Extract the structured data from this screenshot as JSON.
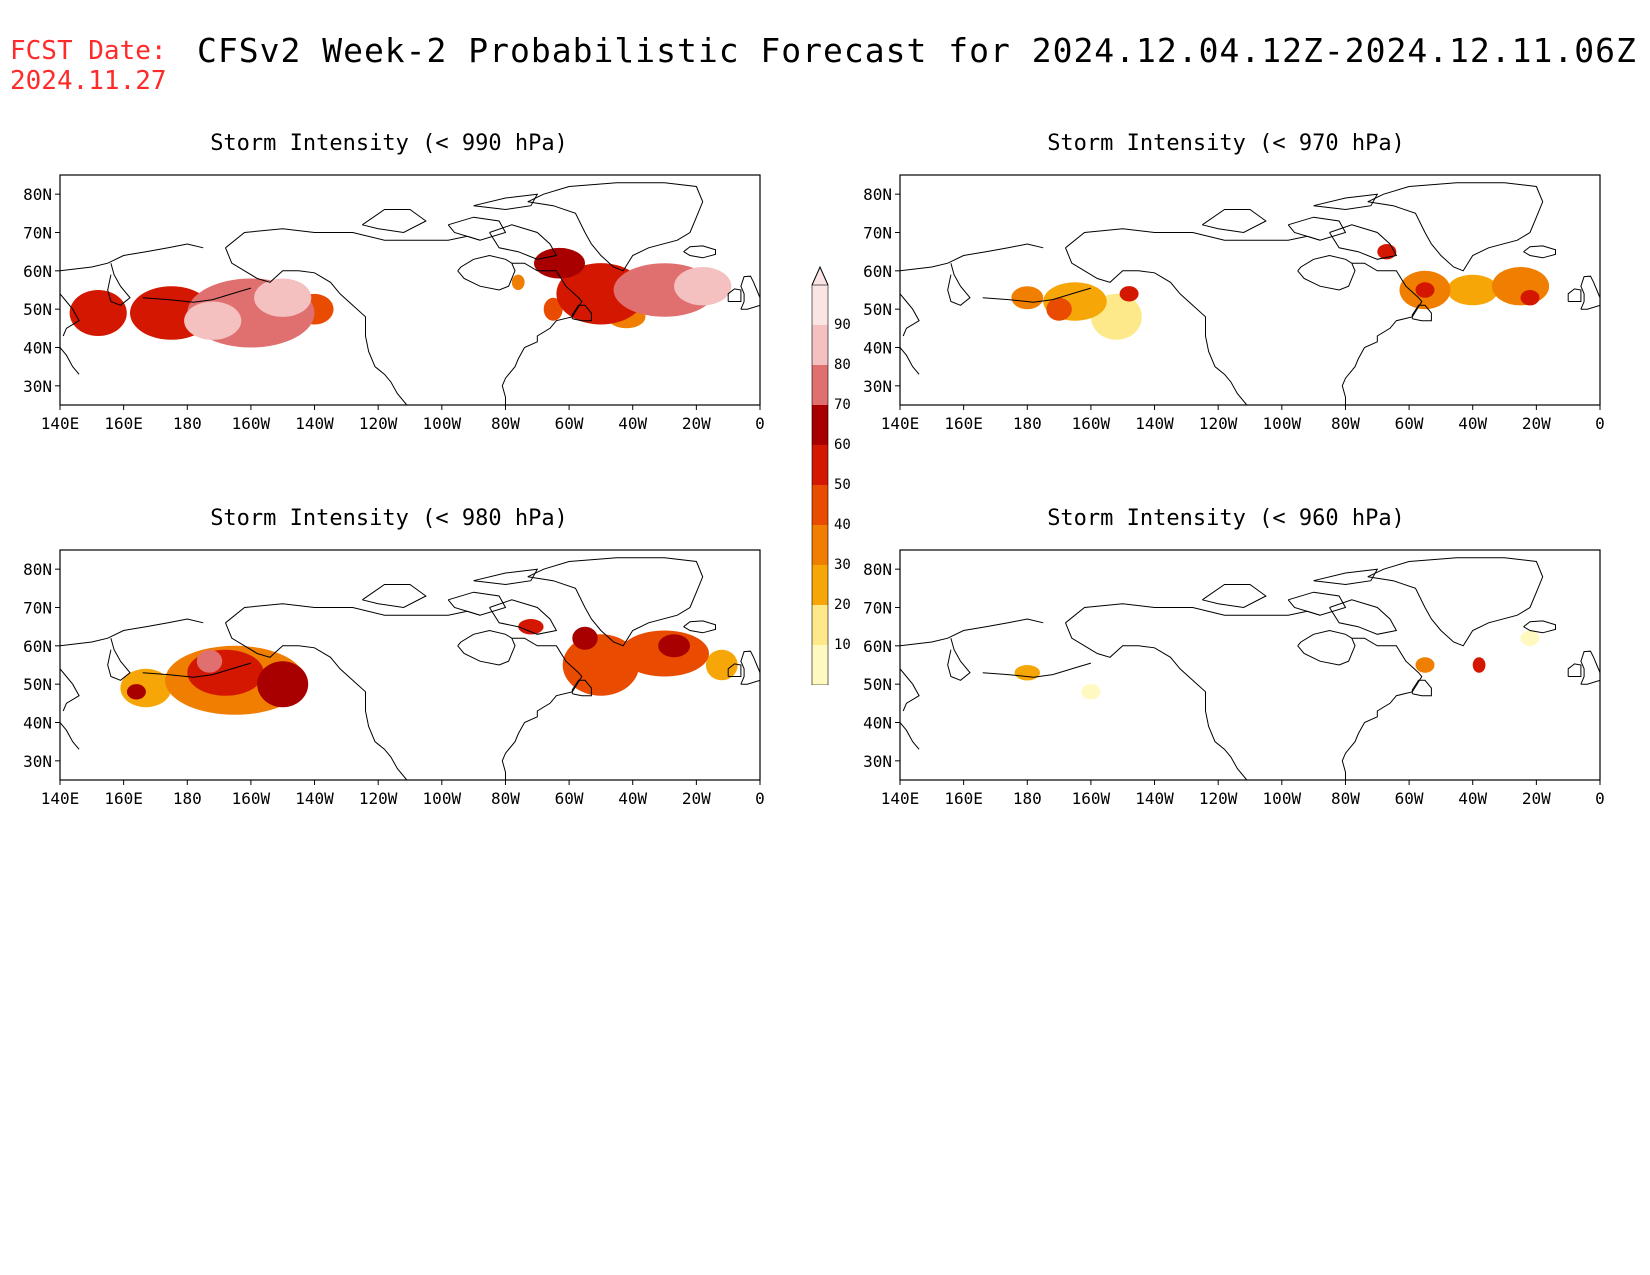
{
  "header": {
    "fcst_label": "FCST Date:",
    "fcst_date": "2024.11.27",
    "title": "CFSv2 Week-2 Probabilistic Forecast for 2024.12.04.12Z-2024.12.11.06Z"
  },
  "axes": {
    "lat_labels": [
      "80N",
      "70N",
      "60N",
      "50N",
      "40N",
      "30N"
    ],
    "lon_labels": [
      "140E",
      "160E",
      "180",
      "160W",
      "140W",
      "120W",
      "100W",
      "80W",
      "60W",
      "40W",
      "20W",
      "0"
    ]
  },
  "panels": [
    {
      "title": "Storm Intensity (< 990 hPa)",
      "blobs": [
        {
          "lon": -185,
          "lat": 49,
          "rx": 13,
          "ry": 7,
          "level": 60
        },
        {
          "lon": -160,
          "lat": 49,
          "rx": 20,
          "ry": 9,
          "level": 80
        },
        {
          "lon": -172,
          "lat": 47,
          "rx": 9,
          "ry": 5,
          "level": 90
        },
        {
          "lon": -150,
          "lat": 53,
          "rx": 9,
          "ry": 5,
          "level": 90
        },
        {
          "lon": -208,
          "lat": 49,
          "rx": 9,
          "ry": 6,
          "level": 60
        },
        {
          "lon": -140,
          "lat": 50,
          "rx": 6,
          "ry": 4,
          "level": 50
        },
        {
          "lon": -50,
          "lat": 54,
          "rx": 14,
          "ry": 8,
          "level": 60
        },
        {
          "lon": -30,
          "lat": 55,
          "rx": 16,
          "ry": 7,
          "level": 80
        },
        {
          "lon": -18,
          "lat": 56,
          "rx": 9,
          "ry": 5,
          "level": 90
        },
        {
          "lon": -63,
          "lat": 62,
          "rx": 8,
          "ry": 4,
          "level": 70
        },
        {
          "lon": -42,
          "lat": 48,
          "rx": 6,
          "ry": 3,
          "level": 40
        },
        {
          "lon": -76,
          "lat": 57,
          "rx": 2,
          "ry": 2,
          "level": 40
        },
        {
          "lon": -65,
          "lat": 50,
          "rx": 3,
          "ry": 3,
          "level": 50
        }
      ]
    },
    {
      "title": "Storm Intensity (< 970 hPa)",
      "blobs": [
        {
          "lon": -180,
          "lat": 53,
          "rx": 5,
          "ry": 3,
          "level": 40
        },
        {
          "lon": -165,
          "lat": 52,
          "rx": 10,
          "ry": 5,
          "level": 30
        },
        {
          "lon": -152,
          "lat": 48,
          "rx": 8,
          "ry": 6,
          "level": 20
        },
        {
          "lon": -170,
          "lat": 50,
          "rx": 4,
          "ry": 3,
          "level": 50
        },
        {
          "lon": -148,
          "lat": 54,
          "rx": 3,
          "ry": 2,
          "level": 60
        },
        {
          "lon": -55,
          "lat": 55,
          "rx": 8,
          "ry": 5,
          "level": 40
        },
        {
          "lon": -55,
          "lat": 55,
          "rx": 3,
          "ry": 2,
          "level": 60
        },
        {
          "lon": -40,
          "lat": 55,
          "rx": 8,
          "ry": 4,
          "level": 30
        },
        {
          "lon": -25,
          "lat": 56,
          "rx": 9,
          "ry": 5,
          "level": 40
        },
        {
          "lon": -22,
          "lat": 53,
          "rx": 3,
          "ry": 2,
          "level": 60
        },
        {
          "lon": -67,
          "lat": 65,
          "rx": 3,
          "ry": 2,
          "level": 60
        }
      ]
    },
    {
      "title": "Storm Intensity (< 980 hPa)",
      "blobs": [
        {
          "lon": -165,
          "lat": 51,
          "rx": 22,
          "ry": 9,
          "level": 40
        },
        {
          "lon": -168,
          "lat": 53,
          "rx": 12,
          "ry": 6,
          "level": 60
        },
        {
          "lon": -150,
          "lat": 50,
          "rx": 8,
          "ry": 6,
          "level": 70
        },
        {
          "lon": -173,
          "lat": 56,
          "rx": 4,
          "ry": 3,
          "level": 80
        },
        {
          "lon": -193,
          "lat": 49,
          "rx": 8,
          "ry": 5,
          "level": 30
        },
        {
          "lon": -196,
          "lat": 48,
          "rx": 3,
          "ry": 2,
          "level": 70
        },
        {
          "lon": -50,
          "lat": 55,
          "rx": 12,
          "ry": 8,
          "level": 50
        },
        {
          "lon": -30,
          "lat": 58,
          "rx": 14,
          "ry": 6,
          "level": 50
        },
        {
          "lon": -27,
          "lat": 60,
          "rx": 5,
          "ry": 3,
          "level": 70
        },
        {
          "lon": -55,
          "lat": 62,
          "rx": 4,
          "ry": 3,
          "level": 70
        },
        {
          "lon": -72,
          "lat": 65,
          "rx": 4,
          "ry": 2,
          "level": 60
        },
        {
          "lon": -12,
          "lat": 55,
          "rx": 5,
          "ry": 4,
          "level": 30
        }
      ]
    },
    {
      "title": "Storm Intensity (< 960 hPa)",
      "blobs": [
        {
          "lon": -180,
          "lat": 53,
          "rx": 4,
          "ry": 2,
          "level": 30
        },
        {
          "lon": -55,
          "lat": 55,
          "rx": 3,
          "ry": 2,
          "level": 40
        },
        {
          "lon": -38,
          "lat": 55,
          "rx": 2,
          "ry": 2,
          "level": 60
        },
        {
          "lon": -22,
          "lat": 62,
          "rx": 3,
          "ry": 2,
          "level": 10
        },
        {
          "lon": -160,
          "lat": 48,
          "rx": 3,
          "ry": 2,
          "level": 10
        }
      ]
    }
  ],
  "colorbar": {
    "levels": [
      "10",
      "20",
      "30",
      "40",
      "50",
      "60",
      "70",
      "80",
      "90"
    ],
    "colors": [
      "#fff8c0",
      "#fde98a",
      "#f7a608",
      "#f07e00",
      "#e94b00",
      "#d41700",
      "#a80000",
      "#e07070",
      "#f4c0c0",
      "#fbe4e4"
    ]
  }
}
